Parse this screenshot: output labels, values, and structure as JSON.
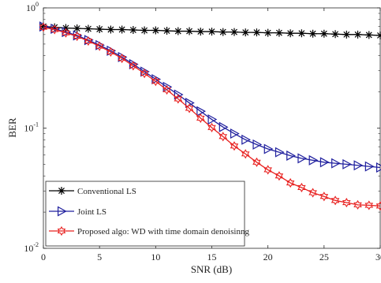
{
  "chart_data": {
    "type": "line",
    "title": "",
    "xlabel": "SNR (dB)",
    "ylabel": "BER",
    "xlim": [
      0,
      30
    ],
    "ylim": [
      0.01,
      1
    ],
    "yscale": "log",
    "grid": false,
    "legend_position": "bottom-left",
    "x_ticks": [
      0,
      5,
      10,
      15,
      20,
      25,
      30
    ],
    "x_tick_labels": [
      "0",
      "5",
      "10",
      "15",
      "20",
      "25",
      "30"
    ],
    "y_ticks": [
      0.01,
      0.1,
      1
    ],
    "y_tick_labels": [
      {
        "base": "10",
        "exp": "-2"
      },
      {
        "base": "10",
        "exp": "-1"
      },
      {
        "base": "10",
        "exp": "0"
      }
    ],
    "x": [
      0,
      1,
      2,
      3,
      4,
      5,
      6,
      7,
      8,
      9,
      10,
      11,
      12,
      13,
      14,
      15,
      16,
      17,
      18,
      19,
      20,
      21,
      22,
      23,
      24,
      25,
      26,
      27,
      28,
      29,
      30
    ],
    "series": [
      {
        "name": "Conventional LS",
        "color": "#000000",
        "marker": "asterisk",
        "values": [
          0.7,
          0.69,
          0.68,
          0.675,
          0.67,
          0.665,
          0.66,
          0.66,
          0.655,
          0.65,
          0.65,
          0.645,
          0.64,
          0.64,
          0.635,
          0.635,
          0.63,
          0.63,
          0.625,
          0.625,
          0.62,
          0.62,
          0.615,
          0.615,
          0.61,
          0.61,
          0.605,
          0.6,
          0.6,
          0.595,
          0.59
        ]
      },
      {
        "name": "Joint LS",
        "color": "#1f1f9e",
        "marker": "triangle-right",
        "values": [
          0.7,
          0.67,
          0.63,
          0.59,
          0.54,
          0.49,
          0.44,
          0.39,
          0.34,
          0.295,
          0.255,
          0.22,
          0.19,
          0.162,
          0.138,
          0.118,
          0.102,
          0.09,
          0.08,
          0.073,
          0.067,
          0.063,
          0.059,
          0.056,
          0.054,
          0.052,
          0.051,
          0.05,
          0.049,
          0.048,
          0.047
        ]
      },
      {
        "name": "Proposed algo: WD with time domain denoisinng",
        "color": "#e8201f",
        "marker": "hexagram",
        "values": [
          0.69,
          0.66,
          0.62,
          0.58,
          0.53,
          0.48,
          0.43,
          0.38,
          0.33,
          0.285,
          0.245,
          0.208,
          0.175,
          0.146,
          0.121,
          0.101,
          0.085,
          0.071,
          0.061,
          0.052,
          0.045,
          0.04,
          0.035,
          0.032,
          0.029,
          0.027,
          0.025,
          0.024,
          0.023,
          0.0228,
          0.0225
        ]
      }
    ]
  }
}
